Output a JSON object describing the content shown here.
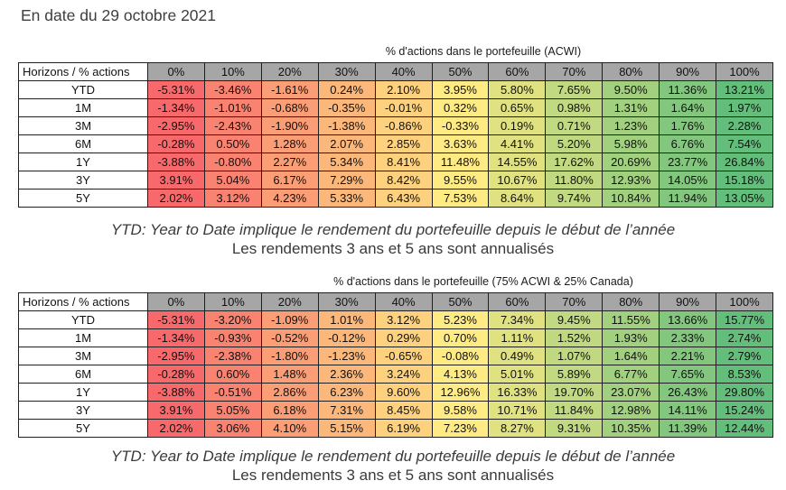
{
  "page": {
    "title": "En date du 29 octobre 2021"
  },
  "colors": {
    "scale_min": "#F8696B",
    "scale_mid": "#FFEB84",
    "scale_max": "#63BE7B",
    "header_bg": "#A6A6A6",
    "grid_border": "#1F1F1F"
  },
  "tables": [
    {
      "caption": "% d'actions dans le portefeuille (ACWI)",
      "corner_label": "Horizons / % actions",
      "columns": [
        "0%",
        "10%",
        "20%",
        "30%",
        "40%",
        "50%",
        "60%",
        "70%",
        "80%",
        "90%",
        "100%"
      ],
      "rows": [
        {
          "label": "YTD",
          "values": [
            "-5.31%",
            "-3.46%",
            "-1.61%",
            "0.24%",
            "2.10%",
            "3.95%",
            "5.80%",
            "7.65%",
            "9.50%",
            "11.36%",
            "13.21%"
          ]
        },
        {
          "label": "1M",
          "values": [
            "-1.34%",
            "-1.01%",
            "-0.68%",
            "-0.35%",
            "-0.01%",
            "0.32%",
            "0.65%",
            "0.98%",
            "1.31%",
            "1.64%",
            "1.97%"
          ]
        },
        {
          "label": "3M",
          "values": [
            "-2.95%",
            "-2.43%",
            "-1.90%",
            "-1.38%",
            "-0.86%",
            "-0.33%",
            "0.19%",
            "0.71%",
            "1.23%",
            "1.76%",
            "2.28%"
          ]
        },
        {
          "label": "6M",
          "values": [
            "-0.28%",
            "0.50%",
            "1.28%",
            "2.07%",
            "2.85%",
            "3.63%",
            "4.41%",
            "5.20%",
            "5.98%",
            "6.76%",
            "7.54%"
          ]
        },
        {
          "label": "1Y",
          "values": [
            "-3.88%",
            "-0.80%",
            "2.27%",
            "5.34%",
            "8.41%",
            "11.48%",
            "14.55%",
            "17.62%",
            "20.69%",
            "23.77%",
            "26.84%"
          ]
        },
        {
          "label": "3Y",
          "values": [
            "3.91%",
            "5.04%",
            "6.17%",
            "7.29%",
            "8.42%",
            "9.55%",
            "10.67%",
            "11.80%",
            "12.93%",
            "14.05%",
            "15.18%"
          ]
        },
        {
          "label": "5Y",
          "values": [
            "2.02%",
            "3.12%",
            "4.23%",
            "5.33%",
            "6.43%",
            "7.53%",
            "8.64%",
            "9.74%",
            "10.84%",
            "11.94%",
            "13.05%"
          ]
        }
      ],
      "footnote": {
        "line1": "YTD: Year to Date implique le rendement du portefeuille depuis le début de l’année",
        "line2": "Les rendements 3 ans et 5 ans sont annualisés"
      }
    },
    {
      "caption": "% d'actions dans le portefeuille (75% ACWI & 25% Canada)",
      "corner_label": "Horizons / % actions",
      "columns": [
        "0%",
        "10%",
        "20%",
        "30%",
        "40%",
        "50%",
        "60%",
        "70%",
        "80%",
        "90%",
        "100%"
      ],
      "rows": [
        {
          "label": "YTD",
          "values": [
            "-5.31%",
            "-3.20%",
            "-1.09%",
            "1.01%",
            "3.12%",
            "5.23%",
            "7.34%",
            "9.45%",
            "11.55%",
            "13.66%",
            "15.77%"
          ]
        },
        {
          "label": "1M",
          "values": [
            "-1.34%",
            "-0.93%",
            "-0.52%",
            "-0.12%",
            "0.29%",
            "0.70%",
            "1.11%",
            "1.52%",
            "1.93%",
            "2.33%",
            "2.74%"
          ]
        },
        {
          "label": "3M",
          "values": [
            "-2.95%",
            "-2.38%",
            "-1.80%",
            "-1.23%",
            "-0.65%",
            "-0.08%",
            "0.49%",
            "1.07%",
            "1.64%",
            "2.21%",
            "2.79%"
          ]
        },
        {
          "label": "6M",
          "values": [
            "-0.28%",
            "0.60%",
            "1.48%",
            "2.36%",
            "3.24%",
            "4.13%",
            "5.01%",
            "5.89%",
            "6.77%",
            "7.65%",
            "8.53%"
          ]
        },
        {
          "label": "1Y",
          "values": [
            "-3.88%",
            "-0.51%",
            "2.86%",
            "6.23%",
            "9.60%",
            "12.96%",
            "16.33%",
            "19.70%",
            "23.07%",
            "26.43%",
            "29.80%"
          ]
        },
        {
          "label": "3Y",
          "values": [
            "3.91%",
            "5.05%",
            "6.18%",
            "7.31%",
            "8.45%",
            "9.58%",
            "10.71%",
            "11.84%",
            "12.98%",
            "14.11%",
            "15.24%"
          ]
        },
        {
          "label": "5Y",
          "values": [
            "2.02%",
            "3.06%",
            "4.10%",
            "5.15%",
            "6.19%",
            "7.23%",
            "8.27%",
            "9.31%",
            "10.35%",
            "11.39%",
            "12.44%"
          ]
        }
      ],
      "footnote": {
        "line1": "YTD: Year to Date implique le rendement du portefeuille depuis le début de l’année",
        "line2": "Les rendements 3 ans et 5 ans sont annualisés"
      }
    }
  ],
  "chart_data": [
    {
      "type": "heatmap",
      "title": "% d'actions dans le portefeuille (ACWI)",
      "xlabel": "% d'actions dans le portefeuille",
      "ylabel": "Horizons",
      "x_categories": [
        "0%",
        "10%",
        "20%",
        "30%",
        "40%",
        "50%",
        "60%",
        "70%",
        "80%",
        "90%",
        "100%"
      ],
      "y_categories": [
        "YTD",
        "1M",
        "3M",
        "6M",
        "1Y",
        "3Y",
        "5Y"
      ],
      "values_pct": [
        [
          -5.31,
          -3.46,
          -1.61,
          0.24,
          2.1,
          3.95,
          5.8,
          7.65,
          9.5,
          11.36,
          13.21
        ],
        [
          -1.34,
          -1.01,
          -0.68,
          -0.35,
          -0.01,
          0.32,
          0.65,
          0.98,
          1.31,
          1.64,
          1.97
        ],
        [
          -2.95,
          -2.43,
          -1.9,
          -1.38,
          -0.86,
          -0.33,
          0.19,
          0.71,
          1.23,
          1.76,
          2.28
        ],
        [
          -0.28,
          0.5,
          1.28,
          2.07,
          2.85,
          3.63,
          4.41,
          5.2,
          5.98,
          6.76,
          7.54
        ],
        [
          -3.88,
          -0.8,
          2.27,
          5.34,
          8.41,
          11.48,
          14.55,
          17.62,
          20.69,
          23.77,
          26.84
        ],
        [
          3.91,
          5.04,
          6.17,
          7.29,
          8.42,
          9.55,
          10.67,
          11.8,
          12.93,
          14.05,
          15.18
        ],
        [
          2.02,
          3.12,
          4.23,
          5.33,
          6.43,
          7.53,
          8.64,
          9.74,
          10.84,
          11.94,
          13.05
        ]
      ],
      "color_scale": {
        "mode": "per-row-3-color",
        "min": "#F8696B",
        "mid": "#FFEB84",
        "max": "#63BE7B",
        "midpoint": "median"
      }
    },
    {
      "type": "heatmap",
      "title": "% d'actions dans le portefeuille (75% ACWI & 25% Canada)",
      "xlabel": "% d'actions dans le portefeuille",
      "ylabel": "Horizons",
      "x_categories": [
        "0%",
        "10%",
        "20%",
        "30%",
        "40%",
        "50%",
        "60%",
        "70%",
        "80%",
        "90%",
        "100%"
      ],
      "y_categories": [
        "YTD",
        "1M",
        "3M",
        "6M",
        "1Y",
        "3Y",
        "5Y"
      ],
      "values_pct": [
        [
          -5.31,
          -3.2,
          -1.09,
          1.01,
          3.12,
          5.23,
          7.34,
          9.45,
          11.55,
          13.66,
          15.77
        ],
        [
          -1.34,
          -0.93,
          -0.52,
          -0.12,
          0.29,
          0.7,
          1.11,
          1.52,
          1.93,
          2.33,
          2.74
        ],
        [
          -2.95,
          -2.38,
          -1.8,
          -1.23,
          -0.65,
          -0.08,
          0.49,
          1.07,
          1.64,
          2.21,
          2.79
        ],
        [
          -0.28,
          0.6,
          1.48,
          2.36,
          3.24,
          4.13,
          5.01,
          5.89,
          6.77,
          7.65,
          8.53
        ],
        [
          -3.88,
          -0.51,
          2.86,
          6.23,
          9.6,
          12.96,
          16.33,
          19.7,
          23.07,
          26.43,
          29.8
        ],
        [
          3.91,
          5.05,
          6.18,
          7.31,
          8.45,
          9.58,
          10.71,
          11.84,
          12.98,
          14.11,
          15.24
        ],
        [
          2.02,
          3.06,
          4.1,
          5.15,
          6.19,
          7.23,
          8.27,
          9.31,
          10.35,
          11.39,
          12.44
        ]
      ],
      "color_scale": {
        "mode": "per-row-3-color",
        "min": "#F8696B",
        "mid": "#FFEB84",
        "max": "#63BE7B",
        "midpoint": "median"
      }
    }
  ]
}
